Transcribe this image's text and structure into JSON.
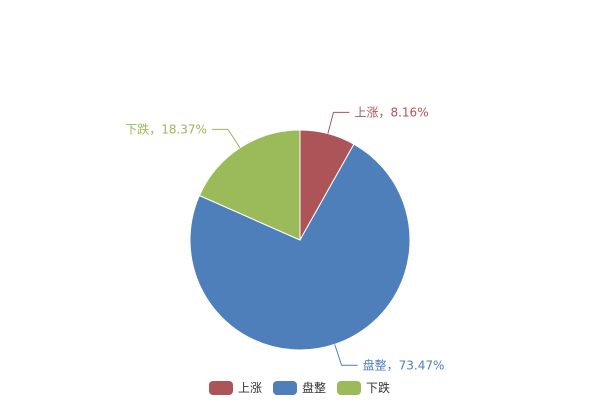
{
  "chart_data": {
    "type": "pie",
    "title": "",
    "slices": [
      {
        "name": "上涨",
        "value": 8.16,
        "label": "上涨，8.16%",
        "color": "#ad5458"
      },
      {
        "name": "盘整",
        "value": 73.47,
        "label": "盘整，73.47%",
        "color": "#4f7fbb"
      },
      {
        "name": "下跌",
        "value": 18.37,
        "label": "下跌，18.37%",
        "color": "#9bba59"
      }
    ],
    "start_angle": "12 o'clock, clockwise",
    "legend": {
      "position": "bottom",
      "items": [
        "上涨",
        "盘整",
        "下跌"
      ]
    }
  }
}
